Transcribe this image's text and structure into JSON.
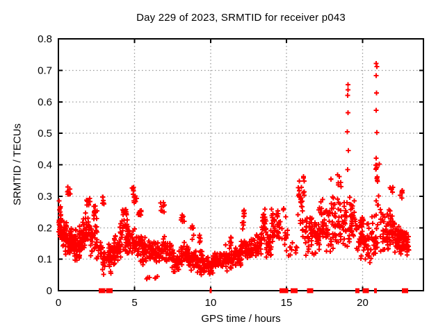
{
  "chart_data": {
    "type": "scatter",
    "title": "Day 229 of 2023, SRMTID for receiver p043",
    "xlabel": "GPS time / hours",
    "ylabel": "SRMTID / TECUs",
    "xlim": [
      0,
      24
    ],
    "ylim": [
      0,
      0.8
    ],
    "xticks": [
      0,
      5,
      10,
      15,
      20
    ],
    "xtick_labels": [
      "0",
      "5",
      "10",
      "15",
      "20"
    ],
    "yticks": [
      0,
      0.1,
      0.2,
      0.3,
      0.4,
      0.5,
      0.6,
      0.7,
      0.8
    ],
    "ytick_labels": [
      "0",
      "0.1",
      "0.2",
      "0.3",
      "0.4",
      "0.5",
      "0.6",
      "0.7",
      "0.8"
    ],
    "grid": {
      "show": true,
      "style": "dotted",
      "color": "#999999"
    },
    "legend": null,
    "marker": {
      "shape": "plus",
      "size": 7,
      "color": "#ff0000"
    },
    "axis_color": "#000000",
    "seed": 1229,
    "bands": [
      [
        0.0,
        0.15,
        22,
        0.16,
        0.285
      ],
      [
        0.05,
        0.6,
        34,
        0.14,
        0.24
      ],
      [
        0.3,
        0.9,
        40,
        0.1,
        0.22
      ],
      [
        0.6,
        0.78,
        8,
        0.29,
        0.335
      ],
      [
        0.7,
        1.2,
        36,
        0.11,
        0.2
      ],
      [
        1.0,
        1.5,
        36,
        0.08,
        0.18
      ],
      [
        1.3,
        1.8,
        34,
        0.12,
        0.21
      ],
      [
        1.6,
        2.1,
        34,
        0.14,
        0.26
      ],
      [
        1.85,
        2.08,
        8,
        0.26,
        0.3
      ],
      [
        2.1,
        2.55,
        30,
        0.1,
        0.22
      ],
      [
        2.25,
        2.55,
        12,
        0.22,
        0.28
      ],
      [
        2.5,
        3.0,
        20,
        0.07,
        0.16
      ],
      [
        2.82,
        3.06,
        6,
        0.27,
        0.3
      ],
      [
        2.9,
        3.45,
        20,
        0.05,
        0.13
      ],
      [
        3.3,
        3.75,
        36,
        0.07,
        0.16
      ],
      [
        3.6,
        4.1,
        32,
        0.09,
        0.18
      ],
      [
        4.0,
        4.65,
        36,
        0.12,
        0.23
      ],
      [
        4.1,
        4.5,
        10,
        0.22,
        0.27
      ],
      [
        4.5,
        5.0,
        32,
        0.1,
        0.21
      ],
      [
        4.8,
        4.95,
        5,
        0.3,
        0.335
      ],
      [
        4.95,
        5.15,
        6,
        0.27,
        0.31
      ],
      [
        5.0,
        5.5,
        32,
        0.1,
        0.2
      ],
      [
        5.2,
        5.45,
        10,
        0.235,
        0.262
      ],
      [
        5.4,
        6.0,
        36,
        0.08,
        0.18
      ],
      [
        5.8,
        6.0,
        3,
        0.03,
        0.05
      ],
      [
        6.0,
        6.5,
        32,
        0.07,
        0.16
      ],
      [
        6.35,
        6.55,
        3,
        0.03,
        0.048
      ],
      [
        6.5,
        7.05,
        32,
        0.08,
        0.18
      ],
      [
        6.7,
        7.0,
        9,
        0.23,
        0.3
      ],
      [
        7.0,
        7.6,
        36,
        0.07,
        0.16
      ],
      [
        7.5,
        8.05,
        32,
        0.05,
        0.14
      ],
      [
        8.0,
        8.3,
        8,
        0.215,
        0.255
      ],
      [
        8.0,
        8.6,
        36,
        0.07,
        0.16
      ],
      [
        8.5,
        9.05,
        32,
        0.06,
        0.15
      ],
      [
        8.7,
        8.95,
        6,
        0.16,
        0.21
      ],
      [
        9.0,
        9.6,
        36,
        0.05,
        0.14
      ],
      [
        9.1,
        9.35,
        5,
        0.15,
        0.19
      ],
      [
        9.5,
        10.2,
        42,
        0.05,
        0.12
      ],
      [
        10.2,
        10.9,
        42,
        0.06,
        0.13
      ],
      [
        10.9,
        11.5,
        38,
        0.06,
        0.15
      ],
      [
        11.2,
        11.45,
        6,
        0.14,
        0.18
      ],
      [
        11.5,
        12.0,
        38,
        0.07,
        0.15
      ],
      [
        12.0,
        12.45,
        30,
        0.09,
        0.18
      ],
      [
        12.05,
        12.3,
        10,
        0.18,
        0.27
      ],
      [
        12.4,
        13.0,
        38,
        0.09,
        0.17
      ],
      [
        13.0,
        13.4,
        30,
        0.11,
        0.2
      ],
      [
        13.35,
        13.68,
        24,
        0.15,
        0.285
      ],
      [
        13.6,
        14.1,
        32,
        0.1,
        0.2
      ],
      [
        14.0,
        14.6,
        36,
        0.13,
        0.27
      ],
      [
        14.6,
        15.1,
        14,
        0.1,
        0.295
      ],
      [
        15.1,
        15.7,
        11,
        0.1,
        0.17
      ],
      [
        15.75,
        16.2,
        30,
        0.17,
        0.42
      ],
      [
        16.2,
        16.7,
        36,
        0.1,
        0.26
      ],
      [
        16.6,
        17.15,
        32,
        0.1,
        0.25
      ],
      [
        17.1,
        17.65,
        36,
        0.12,
        0.3
      ],
      [
        17.6,
        18.1,
        32,
        0.1,
        0.315
      ],
      [
        17.8,
        17.95,
        2,
        0.345,
        0.365
      ],
      [
        18.1,
        18.7,
        32,
        0.12,
        0.295
      ],
      [
        18.3,
        18.62,
        6,
        0.295,
        0.375
      ],
      [
        18.7,
        19.2,
        30,
        0.12,
        0.3
      ],
      [
        19.2,
        19.6,
        26,
        0.14,
        0.3
      ],
      [
        19.6,
        20.1,
        30,
        0.09,
        0.25
      ],
      [
        19.85,
        20.05,
        10,
        0.205,
        0.24
      ],
      [
        20.1,
        20.6,
        30,
        0.07,
        0.22
      ],
      [
        20.6,
        21.0,
        24,
        0.1,
        0.25
      ],
      [
        20.85,
        21.12,
        12,
        0.25,
        0.42
      ],
      [
        21.1,
        21.7,
        36,
        0.1,
        0.27
      ],
      [
        21.7,
        22.1,
        32,
        0.12,
        0.3
      ],
      [
        21.8,
        22.02,
        6,
        0.3,
        0.345
      ],
      [
        22.1,
        22.6,
        40,
        0.11,
        0.22
      ],
      [
        22.3,
        22.9,
        34,
        0.125,
        0.2
      ],
      [
        22.45,
        22.62,
        6,
        0.285,
        0.33
      ],
      [
        22.6,
        23.05,
        24,
        0.09,
        0.2
      ]
    ],
    "outliers": [
      [
        0.05,
        0.285
      ],
      [
        19.02,
        0.385
      ],
      [
        19.06,
        0.445
      ],
      [
        19.0,
        0.505
      ],
      [
        19.05,
        0.565
      ],
      [
        19.02,
        0.62
      ],
      [
        19.05,
        0.638
      ],
      [
        19.03,
        0.655
      ],
      [
        20.9,
        0.388
      ],
      [
        20.93,
        0.399
      ],
      [
        20.9,
        0.421
      ],
      [
        20.93,
        0.502
      ],
      [
        20.9,
        0.573
      ],
      [
        20.92,
        0.628
      ],
      [
        20.9,
        0.683
      ],
      [
        20.94,
        0.712
      ],
      [
        20.9,
        0.722
      ]
    ],
    "zero_markers": [
      [
        2.8,
        7
      ],
      [
        2.92,
        7
      ],
      [
        3.3,
        7
      ],
      [
        3.42,
        6
      ],
      [
        10.0,
        3
      ],
      [
        14.7,
        7
      ],
      [
        14.82,
        7
      ],
      [
        14.97,
        6
      ],
      [
        15.42,
        7
      ],
      [
        15.56,
        7
      ],
      [
        16.5,
        7
      ],
      [
        16.62,
        6
      ],
      [
        19.65,
        6
      ],
      [
        20.15,
        7
      ],
      [
        20.27,
        6
      ],
      [
        20.8,
        2
      ],
      [
        20.9,
        2
      ],
      [
        22.75,
        7
      ],
      [
        22.86,
        6
      ]
    ]
  }
}
